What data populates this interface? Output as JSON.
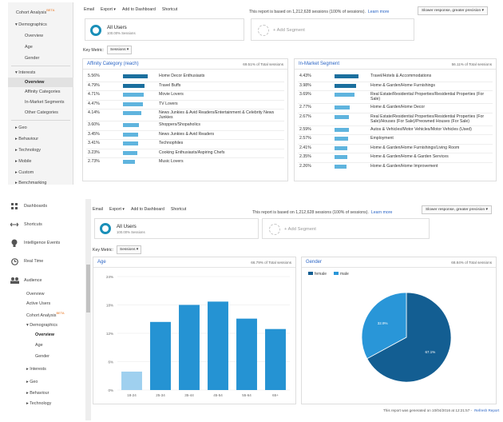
{
  "top": {
    "sidebar": {
      "title": "Cohort Analysis",
      "badge": "BETA",
      "items": [
        {
          "label": "▾ Demographics"
        },
        {
          "label": "Overview"
        },
        {
          "label": "Age"
        },
        {
          "label": "Gender"
        },
        {
          "label": "▾ Interests"
        },
        {
          "label": "Overview"
        },
        {
          "label": "Affinity Categories"
        },
        {
          "label": "In-Market Segments"
        },
        {
          "label": "Other Categories"
        },
        {
          "label": "▸ Geo"
        },
        {
          "label": "▸ Behaviour"
        },
        {
          "label": "▸ Technology"
        },
        {
          "label": "▸ Mobile"
        },
        {
          "label": "▸ Custom"
        },
        {
          "label": "▸ Benchmarking"
        }
      ]
    },
    "toolbar": {
      "email": "Email",
      "export": "Export ▾",
      "add_dashboard": "Add to Dashboard",
      "shortcut": "Shortcut"
    },
    "report_note": "This report is based on 1,212,628 sessions (100% of sessions).",
    "learn_more": "Learn more",
    "precision": "Slower response, greater precision  ▾",
    "segment": {
      "title": "All Users",
      "sub": "100.00% Sessions"
    },
    "add_segment": "+ Add Segment",
    "key_metric_label": "Key Metric:",
    "key_metric_value": "Sessions  ▾",
    "affinity": {
      "title": "Affinity Category (reach)",
      "total": "69.51% of Total sessions",
      "rows": [
        {
          "pct": "5.56%",
          "label": "Home Decor Enthusiasts",
          "value": 5.56
        },
        {
          "pct": "4.79%",
          "label": "Travel Buffs",
          "value": 4.79
        },
        {
          "pct": "4.71%",
          "label": "Movie Lovers",
          "value": 4.71
        },
        {
          "pct": "4.47%",
          "label": "TV Lovers",
          "value": 4.47
        },
        {
          "pct": "4.14%",
          "label": "News Junkies & Avid Readers/Entertainment & Celebrity News Junkies",
          "value": 4.14
        },
        {
          "pct": "3.60%",
          "label": "Shoppers/Shopaholics",
          "value": 3.6
        },
        {
          "pct": "3.45%",
          "label": "News Junkies & Avid Readers",
          "value": 3.45
        },
        {
          "pct": "3.41%",
          "label": "Technophiles",
          "value": 3.41
        },
        {
          "pct": "3.23%",
          "label": "Cooking Enthusiasts/Aspiring Chefs",
          "value": 3.23
        },
        {
          "pct": "2.73%",
          "label": "Music Lovers",
          "value": 2.73
        }
      ]
    },
    "inmarket": {
      "title": "In-Market Segment",
      "total": "56.11% of Total sessions",
      "rows": [
        {
          "pct": "4.43%",
          "label": "Travel/Hotels & Accommodations",
          "value": 4.43
        },
        {
          "pct": "3.98%",
          "label": "Home & Garden/Home Furnishings",
          "value": 3.98
        },
        {
          "pct": "3.69%",
          "label": "Real Estate/Residential Properties/Residential Properties (For Sale)",
          "value": 3.69
        },
        {
          "pct": "2.77%",
          "label": "Home & Garden/Home Decor",
          "value": 2.77
        },
        {
          "pct": "2.67%",
          "label": "Real Estate/Residential Properties/Residential Properties (For Sale)/Houses (For Sale)/Preowned Houses (For Sale)",
          "value": 2.67
        },
        {
          "pct": "2.59%",
          "label": "Autos & Vehicles/Motor Vehicles/Motor Vehicles (Used)",
          "value": 2.59
        },
        {
          "pct": "2.57%",
          "label": "Employment",
          "value": 2.57
        },
        {
          "pct": "2.41%",
          "label": "Home & Garden/Home Furnishings/Living Room",
          "value": 2.41
        },
        {
          "pct": "2.35%",
          "label": "Home & Garden/Home & Garden Services",
          "value": 2.35
        },
        {
          "pct": "2.26%",
          "label": "Home & Garden/Home Improvement",
          "value": 2.26
        }
      ]
    }
  },
  "bottom": {
    "nav": [
      {
        "label": "Dashboards",
        "icon": "grid-icon"
      },
      {
        "label": "Shortcuts",
        "icon": "arrows-icon"
      },
      {
        "label": "Intelligence Events",
        "icon": "lightbulb-icon"
      },
      {
        "label": "Real Time",
        "icon": "clock-icon"
      },
      {
        "label": "Audience",
        "icon": "people-icon"
      }
    ],
    "sub": [
      {
        "label": "Overview"
      },
      {
        "label": "Active Users"
      },
      {
        "label": "Cohort Analysis"
      },
      {
        "label": "▾ Demographics"
      },
      {
        "label": "Overview"
      },
      {
        "label": "Age"
      },
      {
        "label": "Gender"
      },
      {
        "label": "▸ Interests"
      },
      {
        "label": "▸ Geo"
      },
      {
        "label": "▸ Behaviour"
      },
      {
        "label": "▸ Technology"
      }
    ],
    "beta_badge": "BETA",
    "toolbar": {
      "email": "Email",
      "export": "Export ▾",
      "add_dashboard": "Add to Dashboard",
      "shortcut": "Shortcut"
    },
    "report_note": "This report is based on 1,212,628 sessions (100% of sessions).",
    "learn_more": "Learn more",
    "precision": "Slower response, greater precision  ▾",
    "segment": {
      "title": "All Users",
      "sub": "100.00% Sessions"
    },
    "add_segment": "+ Add Segment",
    "key_metric_label": "Key Metric:",
    "key_metric_value": "Sessions  ▾",
    "age_card": {
      "title": "Age",
      "total": "66.79% of Total sessions"
    },
    "gender_card": {
      "title": "Gender",
      "total": "68.84% of Total sessions"
    },
    "footer": "This report was generated on 10/04/2016 at 12:21:57 -",
    "refresh": "Refresh Report"
  },
  "colors": {
    "accent": "#2a64c5",
    "bar_dark": "#1b6f9e",
    "bar_light": "#5fb4de",
    "age_bar": "#2593d3",
    "age_bar_first": "#9fd0ef",
    "female": "#135e92",
    "male": "#2996d8"
  },
  "chart_data": [
    {
      "type": "bar",
      "title": "Age",
      "categories": [
        "18-24",
        "25-34",
        "35-44",
        "45-54",
        "55-64",
        "65+"
      ],
      "values": [
        3.9,
        14.4,
        18.0,
        18.7,
        15.1,
        12.9
      ],
      "yticks": [
        "0%",
        "6%",
        "12%",
        "18%",
        "24%"
      ],
      "ylim": [
        0,
        24
      ],
      "grid": true
    },
    {
      "type": "pie",
      "title": "Gender",
      "legend": [
        "female",
        "male"
      ],
      "legend_position": "top-left",
      "values": [
        67.1,
        32.9
      ],
      "labels": [
        "67.1%",
        "32.9%"
      ]
    }
  ]
}
